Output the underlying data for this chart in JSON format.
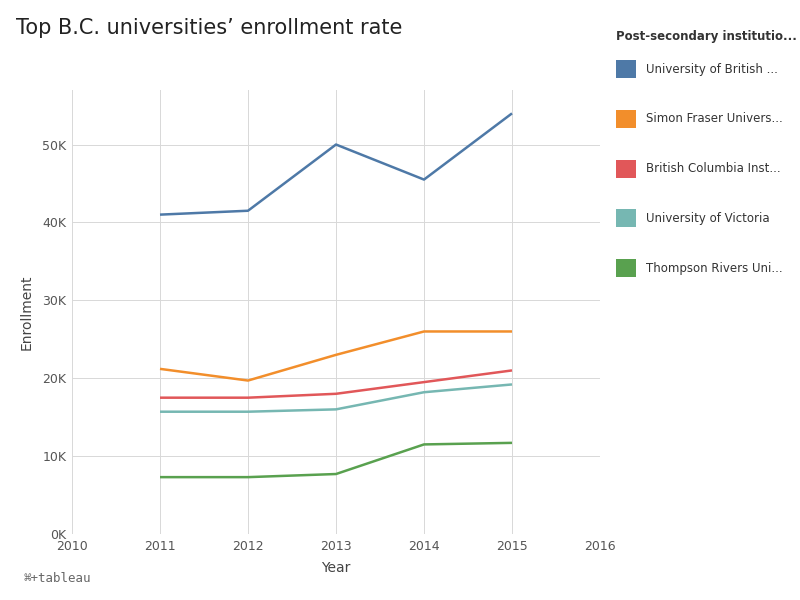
{
  "title": "Top B.C. universities’ enrollment rate",
  "xlabel": "Year",
  "ylabel": "Enrollment",
  "background_color": "#ffffff",
  "plot_bg_color": "#ffffff",
  "grid_color": "#d8d8d8",
  "years": [
    2011,
    2012,
    2013,
    2014,
    2015
  ],
  "x_ticks": [
    2010,
    2011,
    2012,
    2013,
    2014,
    2015,
    2016
  ],
  "ylim": [
    0,
    57000
  ],
  "y_ticks": [
    0,
    10000,
    20000,
    30000,
    40000,
    50000
  ],
  "series": [
    {
      "label": "University of British ...",
      "color": "#4e79a7",
      "values": [
        41000,
        41500,
        50000,
        45500,
        54000
      ]
    },
    {
      "label": "Simon Fraser Univers...",
      "color": "#f28e2b",
      "values": [
        21200,
        19700,
        23000,
        26000,
        26000
      ]
    },
    {
      "label": "British Columbia Inst...",
      "color": "#e15759",
      "values": [
        17500,
        17500,
        18000,
        19500,
        21000
      ]
    },
    {
      "label": "University of Victoria",
      "color": "#76b7b2",
      "values": [
        15700,
        15700,
        16000,
        18200,
        19200
      ]
    },
    {
      "label": "Thompson Rivers Uni...",
      "color": "#59a14f",
      "values": [
        7300,
        7300,
        7700,
        11500,
        11700
      ]
    }
  ],
  "legend_title": "Post-secondary institutio...",
  "title_fontsize": 15,
  "axis_label_fontsize": 10,
  "tick_fontsize": 9,
  "legend_fontsize": 8.5,
  "legend_title_fontsize": 8.5,
  "line_width": 1.8,
  "footer_text": "⌘+tableau",
  "footer_bg": "#e9e9e9",
  "swatch_size": 10
}
